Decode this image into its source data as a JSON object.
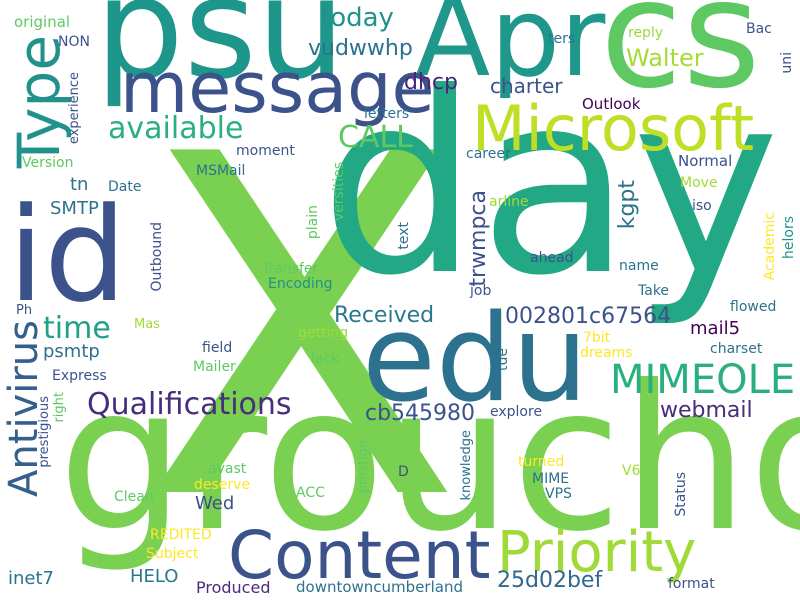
{
  "words": [
    {
      "text": "X",
      "color": "#7ad151"
    },
    {
      "text": "day",
      "color": "#22a884"
    },
    {
      "text": "groucho",
      "color": "#7ad151"
    },
    {
      "text": "psu",
      "color": "#1f968b"
    },
    {
      "text": "cs",
      "color": "#5ec962"
    },
    {
      "text": "Apr",
      "color": "#1f978b"
    },
    {
      "text": "id",
      "color": "#3b528b"
    },
    {
      "text": "edu",
      "color": "#2c728e"
    },
    {
      "text": "message",
      "color": "#3b528b"
    },
    {
      "text": "Microsoft",
      "color": "#bddf26"
    },
    {
      "text": "Type",
      "color": "#21918c"
    },
    {
      "text": "Content",
      "color": "#3b528b"
    },
    {
      "text": "Priority",
      "color": "#a0da39"
    },
    {
      "text": "MIMEOLE",
      "color": "#2ab07f"
    },
    {
      "text": "Antivirus",
      "color": "#355f8d"
    },
    {
      "text": "Qualifications",
      "color": "#472d7b"
    },
    {
      "text": "available",
      "color": "#2ab07f"
    },
    {
      "text": "time",
      "color": "#1fa187"
    },
    {
      "text": "CALL",
      "color": "#5ec962"
    },
    {
      "text": "today",
      "color": "#21918c"
    },
    {
      "text": "vudwwhp",
      "color": "#2c728e"
    },
    {
      "text": "Walter",
      "color": "#a5db36"
    },
    {
      "text": "charter",
      "color": "#3b528b"
    },
    {
      "text": "dhcp",
      "color": "#482878"
    },
    {
      "text": "Received",
      "color": "#2a788e"
    },
    {
      "text": "002801c67564",
      "color": "#3b528b"
    },
    {
      "text": "cb545980",
      "color": "#3b528b"
    },
    {
      "text": "25d02bef",
      "color": "#31688e"
    },
    {
      "text": "webmail",
      "color": "#472d7b"
    },
    {
      "text": "kgpt",
      "color": "#2c728e"
    },
    {
      "text": "trwmpca",
      "color": "#3b528b"
    },
    {
      "text": "mail5",
      "color": "#440154"
    },
    {
      "text": "psmtp",
      "color": "#2c728e"
    },
    {
      "text": "SMTP",
      "color": "#2c728e"
    },
    {
      "text": "tn",
      "color": "#2c728e"
    },
    {
      "text": "Wed",
      "color": "#3b528b"
    },
    {
      "text": "HELO",
      "color": "#2a788e"
    },
    {
      "text": "inet7",
      "color": "#2c728e"
    },
    {
      "text": "original",
      "color": "#5ec962"
    },
    {
      "text": "NON",
      "color": "#3b528b"
    },
    {
      "text": "experience",
      "color": "#3b528b"
    },
    {
      "text": "Version",
      "color": "#5ec962"
    },
    {
      "text": "Date",
      "color": "#2c728e"
    },
    {
      "text": "MSMail",
      "color": "#2c728e"
    },
    {
      "text": "moment",
      "color": "#3b528b"
    },
    {
      "text": "Outbound",
      "color": "#3b528b"
    },
    {
      "text": "Transfer",
      "color": "#5ec962"
    },
    {
      "text": "Encoding",
      "color": "#21918c"
    },
    {
      "text": "versities",
      "color": "#5ec962"
    },
    {
      "text": "plain",
      "color": "#5ec962"
    },
    {
      "text": "text",
      "color": "#2c728e"
    },
    {
      "text": "arline",
      "color": "#a0da39"
    },
    {
      "text": "ahead",
      "color": "#3b528b"
    },
    {
      "text": "name",
      "color": "#2c728e"
    },
    {
      "text": "Take",
      "color": "#2c728e"
    },
    {
      "text": "flowed",
      "color": "#2c728e"
    },
    {
      "text": "Academic",
      "color": "#fde725"
    },
    {
      "text": "helors",
      "color": "#21918c"
    },
    {
      "text": "charset",
      "color": "#2c728e"
    },
    {
      "text": "dreams",
      "color": "#fde725"
    },
    {
      "text": "7bit",
      "color": "#fde725"
    },
    {
      "text": "tue",
      "color": "#2c728e"
    },
    {
      "text": "job",
      "color": "#3b528b"
    },
    {
      "text": "getting",
      "color": "#a0da39"
    },
    {
      "text": "lack",
      "color": "#5ec962"
    },
    {
      "text": "field",
      "color": "#3b528b"
    },
    {
      "text": "Mailer",
      "color": "#5ec962"
    },
    {
      "text": "Mas",
      "color": "#a0da39"
    },
    {
      "text": "Ph",
      "color": "#3b528b"
    },
    {
      "text": "Express",
      "color": "#3b528b"
    },
    {
      "text": "right",
      "color": "#5ec962"
    },
    {
      "text": "prestigious",
      "color": "#3b528b"
    },
    {
      "text": "avast",
      "color": "#5ec962"
    },
    {
      "text": "deserve",
      "color": "#fde725"
    },
    {
      "text": "Clean",
      "color": "#5ec962"
    },
    {
      "text": "ACC",
      "color": "#5ec962"
    },
    {
      "text": "prestige",
      "color": "#5ec962"
    },
    {
      "text": "D",
      "color": "#3b528b"
    },
    {
      "text": "knowledge",
      "color": "#2c728e"
    },
    {
      "text": "explore",
      "color": "#3b528b"
    },
    {
      "text": "turned",
      "color": "#fde725"
    },
    {
      "text": "MIME",
      "color": "#2c728e"
    },
    {
      "text": "VPS",
      "color": "#2c728e"
    },
    {
      "text": "V6",
      "color": "#a0da39"
    },
    {
      "text": "Status",
      "color": "#3b528b"
    },
    {
      "text": "format",
      "color": "#3b528b"
    },
    {
      "text": "REDITED",
      "color": "#fde725"
    },
    {
      "text": "Subject",
      "color": "#fde725"
    },
    {
      "text": "Produced",
      "color": "#472d7b"
    },
    {
      "text": "downtowncumberland",
      "color": "#2c728e"
    },
    {
      "text": "reply",
      "color": "#a0da39"
    },
    {
      "text": "ters",
      "color": "#2c728e"
    },
    {
      "text": "Bac",
      "color": "#3b528b"
    },
    {
      "text": "uni",
      "color": "#3b528b"
    },
    {
      "text": "Outlook",
      "color": "#440154"
    },
    {
      "text": "letters",
      "color": "#2c728e"
    },
    {
      "text": "career",
      "color": "#2c728e"
    },
    {
      "text": "Normal",
      "color": "#3b528b"
    },
    {
      "text": "Move",
      "color": "#a0da39"
    },
    {
      "text": "iso",
      "color": "#3b528b"
    }
  ]
}
